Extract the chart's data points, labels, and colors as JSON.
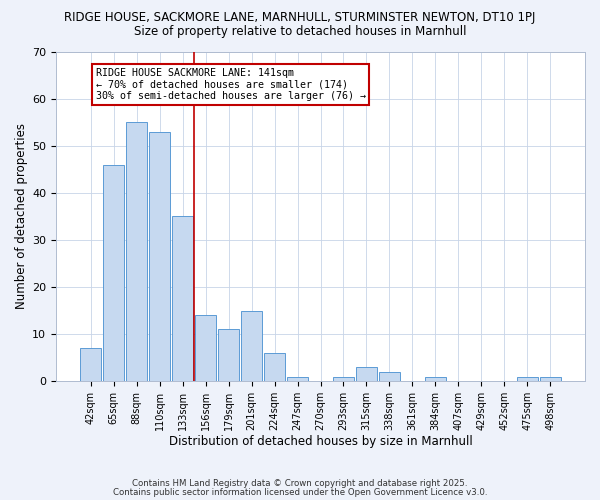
{
  "title_line1": "RIDGE HOUSE, SACKMORE LANE, MARNHULL, STURMINSTER NEWTON, DT10 1PJ",
  "title_line2": "Size of property relative to detached houses in Marnhull",
  "xlabel": "Distribution of detached houses by size in Marnhull",
  "ylabel": "Number of detached properties",
  "bar_labels": [
    "42sqm",
    "65sqm",
    "88sqm",
    "110sqm",
    "133sqm",
    "156sqm",
    "179sqm",
    "201sqm",
    "224sqm",
    "247sqm",
    "270sqm",
    "293sqm",
    "315sqm",
    "338sqm",
    "361sqm",
    "384sqm",
    "407sqm",
    "429sqm",
    "452sqm",
    "475sqm",
    "498sqm"
  ],
  "bar_values": [
    7,
    46,
    55,
    53,
    35,
    14,
    11,
    15,
    6,
    1,
    0,
    1,
    3,
    2,
    0,
    1,
    0,
    0,
    0,
    1,
    1
  ],
  "bar_color": "#c6d9f0",
  "bar_edge_color": "#5b9bd5",
  "vline_x": 4.5,
  "vline_color": "#c00000",
  "annotation_text": "RIDGE HOUSE SACKMORE LANE: 141sqm\n← 70% of detached houses are smaller (174)\n30% of semi-detached houses are larger (76) →",
  "annotation_box_color": "#c00000",
  "ylim": [
    0,
    70
  ],
  "yticks": [
    0,
    10,
    20,
    30,
    40,
    50,
    60,
    70
  ],
  "bg_color": "#eef2fa",
  "plot_bg_color": "#ffffff",
  "grid_color": "#c8d4e8",
  "footer_line1": "Contains HM Land Registry data © Crown copyright and database right 2025.",
  "footer_line2": "Contains public sector information licensed under the Open Government Licence v3.0."
}
